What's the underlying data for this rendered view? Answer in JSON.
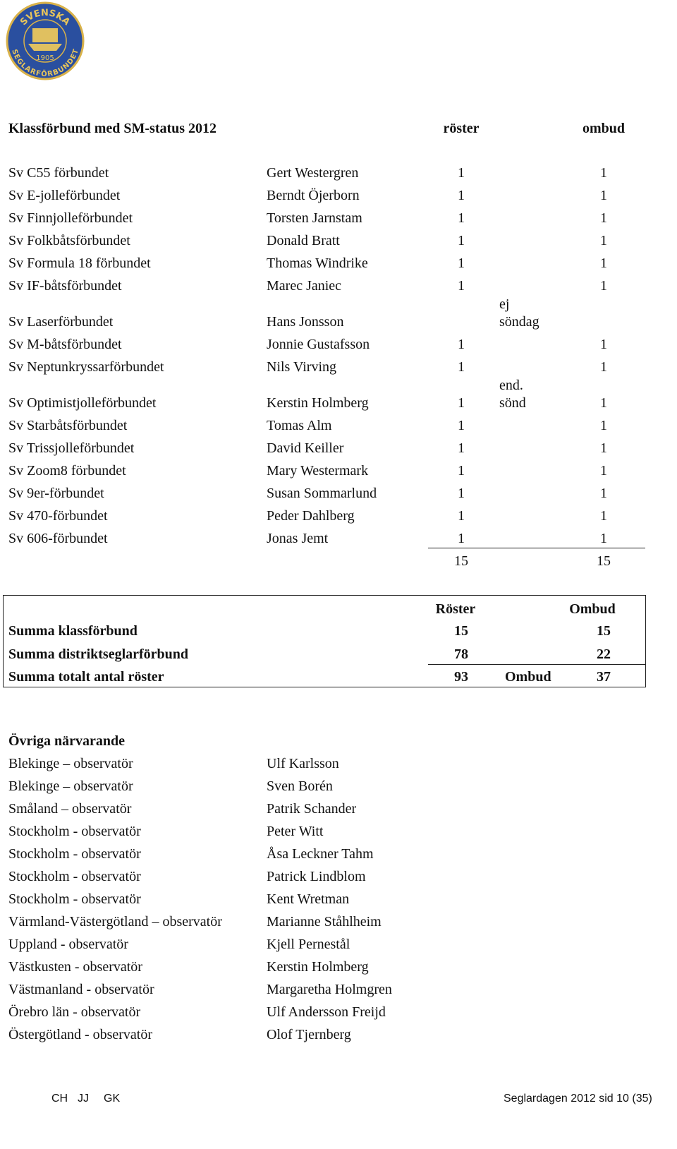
{
  "logo": {
    "top": "SVENSKA",
    "bottom": "SEGLARFÖRBUNDET",
    "year": "1905"
  },
  "classes": {
    "title": "Klassförbund med SM-status 2012",
    "col_roster": "röster",
    "col_ombud": "ombud",
    "rows": [
      {
        "name": "Sv C55 förbundet",
        "person": "Gert Westergren",
        "roster": 1,
        "ombud": 1
      },
      {
        "name": "Sv E-jolleförbundet",
        "person": "Berndt Öjerborn",
        "roster": 1,
        "ombud": 1
      },
      {
        "name": "Sv Finnjolleförbundet",
        "person": "Torsten Jarnstam",
        "roster": 1,
        "ombud": 1
      },
      {
        "name": "Sv Folkbåtsförbundet",
        "person": "Donald Bratt",
        "roster": 1,
        "ombud": 1
      },
      {
        "name": "Sv Formula 18 förbundet",
        "person": "Thomas Windrike",
        "roster": 1,
        "ombud": 1
      },
      {
        "name": "Sv IF-båtsförbundet",
        "person": "Marec Janiec",
        "roster": 1,
        "ombud": 1
      },
      {
        "name": "Sv Laserförbundet",
        "person": "Hans Jonsson",
        "note": [
          "ej",
          "söndag"
        ]
      },
      {
        "name": "Sv M-båtsförbundet",
        "person": "Jonnie Gustafsson",
        "roster": 1,
        "ombud": 1
      },
      {
        "name": "Sv Neptunkryssarförbundet",
        "person": "Nils Virving",
        "roster": 1,
        "ombud": 1
      },
      {
        "name": "Sv Optimistjolleförbundet",
        "person": "Kerstin Holmberg",
        "roster": 1,
        "note": [
          "end.",
          "sönd"
        ],
        "ombud": 1
      },
      {
        "name": "Sv Starbåtsförbundet",
        "person": "Tomas Alm",
        "roster": 1,
        "ombud": 1
      },
      {
        "name": "Sv Trissjolleförbundet",
        "person": "David Keiller",
        "roster": 1,
        "ombud": 1
      },
      {
        "name": "Sv Zoom8 förbundet",
        "person": "Mary Westermark",
        "roster": 1,
        "ombud": 1
      },
      {
        "name": "Sv 9er-förbundet",
        "person": "Susan Sommarlund",
        "roster": 1,
        "ombud": 1
      },
      {
        "name": "Sv 470-förbundet",
        "person": "Peder Dahlberg",
        "roster": 1,
        "ombud": 1
      },
      {
        "name": "Sv 606-förbundet",
        "person": "Jonas Jemt",
        "roster": 1,
        "ombud": 1
      }
    ],
    "total_roster": 15,
    "total_ombud": 15
  },
  "summary": {
    "col_roster": "Röster",
    "col_ombud": "Ombud",
    "rows": [
      {
        "label": "Summa klassförbund",
        "roster": 15,
        "ombud": 15
      },
      {
        "label": "Summa distriktseglarförbund",
        "roster": 78,
        "ombud": 22
      },
      {
        "label": "Summa totalt antal röster",
        "roster": 93,
        "extra": "Ombud",
        "ombud": 37
      }
    ]
  },
  "others": {
    "title": "Övriga närvarande",
    "rows": [
      {
        "region": "Blekinge – observatör",
        "person": "Ulf Karlsson"
      },
      {
        "region": "Blekinge – observatör",
        "person": "Sven Borén"
      },
      {
        "region": "Småland – observatör",
        "person": "Patrik Schander"
      },
      {
        "region": "Stockholm - observatör",
        "person": "Peter Witt"
      },
      {
        "region": "Stockholm - observatör",
        "person": "Åsa Leckner Tahm"
      },
      {
        "region": "Stockholm - observatör",
        "person": "Patrick Lindblom"
      },
      {
        "region": "Stockholm - observatör",
        "person": "Kent Wretman"
      },
      {
        "region": "Värmland-Västergötland – observatör",
        "person": "Marianne Ståhlheim"
      },
      {
        "region": "Uppland - observatör",
        "person": "Kjell Pernestål"
      },
      {
        "region": "Västkusten - observatör",
        "person": "Kerstin Holmberg"
      },
      {
        "region": "Västmanland - observatör",
        "person": "Margaretha Holmgren"
      },
      {
        "region": "Örebro län - observatör",
        "person": "Ulf Andersson Freijd"
      },
      {
        "region": "Östergötland - observatör",
        "person": "Olof Tjernberg"
      }
    ]
  },
  "footer": {
    "initials": [
      "CH",
      "JJ",
      "GK"
    ],
    "page": "Seglardagen 2012 sid 10 (35)"
  }
}
